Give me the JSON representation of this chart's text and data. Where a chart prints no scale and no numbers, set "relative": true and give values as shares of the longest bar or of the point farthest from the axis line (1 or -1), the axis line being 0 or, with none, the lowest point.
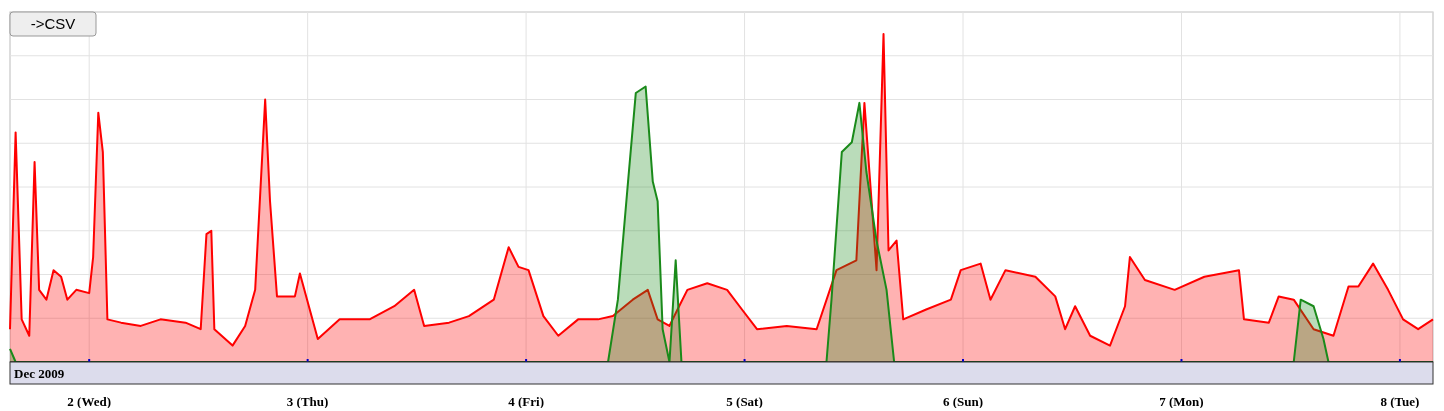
{
  "chart_data": {
    "type": "area",
    "relative": true,
    "xlabel": "Dec 2009",
    "annotations": [
      "->CSV"
    ],
    "grid": true,
    "xlim": [
      "2009-12-01T15:18",
      "2009-12-08T03:38"
    ],
    "xticks": [
      {
        "value": "2009-12-02",
        "label": "2 (Wed)"
      },
      {
        "value": "2009-12-03",
        "label": "3 (Thu)"
      },
      {
        "value": "2009-12-04",
        "label": "4 (Fri)"
      },
      {
        "value": "2009-12-05",
        "label": "5 (Sat)"
      },
      {
        "value": "2009-12-06",
        "label": "6 (Sun)"
      },
      {
        "value": "2009-12-07",
        "label": "7 (Mon)"
      },
      {
        "value": "2009-12-08",
        "label": "8 (Tue)"
      }
    ],
    "series": [
      {
        "color": "#ff0000",
        "x": [
          "2009-12-01T15:18",
          "2009-12-01T15:55",
          "2009-12-01T16:35",
          "2009-12-01T17:25",
          "2009-12-01T18:00",
          "2009-12-01T18:30",
          "2009-12-01T19:18",
          "2009-12-01T20:05",
          "2009-12-01T20:55",
          "2009-12-01T21:36",
          "2009-12-01T22:35",
          "2009-12-02T00:00",
          "2009-12-02T00:26",
          "2009-12-02T01:00",
          "2009-12-02T01:30",
          "2009-12-02T02:00",
          "2009-12-02T03:30",
          "2009-12-02T05:40",
          "2009-12-02T07:50",
          "2009-12-02T10:35",
          "2009-12-02T12:15",
          "2009-12-02T12:53",
          "2009-12-02T13:25",
          "2009-12-02T13:45",
          "2009-12-02T15:45",
          "2009-12-02T17:08",
          "2009-12-02T18:14",
          "2009-12-02T19:20",
          "2009-12-02T19:52",
          "2009-12-02T20:38",
          "2009-12-02T22:36",
          "2009-12-02T23:09",
          "2009-12-03T01:07",
          "2009-12-03T03:31",
          "2009-12-03T06:48",
          "2009-12-03T09:31",
          "2009-12-03T11:42",
          "2009-12-03T12:48",
          "2009-12-03T15:32",
          "2009-12-03T17:43",
          "2009-12-03T20:27",
          "2009-12-03T22:05",
          "2009-12-03T23:10",
          "2009-12-04T00:16",
          "2009-12-04T01:54",
          "2009-12-04T03:32",
          "2009-12-04T05:43",
          "2009-12-04T07:54",
          "2009-12-04T09:32",
          "2009-12-04T11:43",
          "2009-12-04T13:22",
          "2009-12-04T14:27",
          "2009-12-04T15:45",
          "2009-12-04T16:38",
          "2009-12-04T17:43",
          "2009-12-04T19:54",
          "2009-12-04T22:05",
          "2009-12-04T23:43",
          "2009-12-05T01:22",
          "2009-12-05T04:38",
          "2009-12-05T07:55",
          "2009-12-05T10:06",
          "2009-12-05T12:17",
          "2009-12-05T13:10",
          "2009-12-05T13:43",
          "2009-12-05T14:30",
          "2009-12-05T15:16",
          "2009-12-05T15:49",
          "2009-12-05T16:42",
          "2009-12-05T17:26",
          "2009-12-05T19:57",
          "2009-12-05T22:40",
          "2009-12-05T23:45",
          "2009-12-06T01:56",
          "2009-12-06T03:01",
          "2009-12-06T04:40",
          "2009-12-06T07:57",
          "2009-12-06T10:08",
          "2009-12-06T11:13",
          "2009-12-06T12:19",
          "2009-12-06T13:58",
          "2009-12-06T16:09",
          "2009-12-06T17:48",
          "2009-12-06T18:20",
          "2009-12-06T19:59",
          "2009-12-06T23:15",
          "2009-12-07T02:31",
          "2009-12-07T06:19",
          "2009-12-07T06:52",
          "2009-12-07T09:36",
          "2009-12-07T10:41",
          "2009-12-07T12:20",
          "2009-12-07T14:31",
          "2009-12-07T16:42",
          "2009-12-07T18:21",
          "2009-12-07T19:26",
          "2009-12-07T21:03",
          "2009-12-07T22:42",
          "2009-12-08T00:21",
          "2009-12-08T02:00",
          "2009-12-08T03:38"
        ],
        "values": [
          0.1,
          0.7,
          0.13,
          0.08,
          0.61,
          0.22,
          0.19,
          0.28,
          0.26,
          0.19,
          0.22,
          0.21,
          0.32,
          0.76,
          0.64,
          0.13,
          0.12,
          0.11,
          0.13,
          0.12,
          0.1,
          0.39,
          0.4,
          0.1,
          0.05,
          0.11,
          0.22,
          0.8,
          0.49,
          0.2,
          0.2,
          0.27,
          0.07,
          0.13,
          0.13,
          0.17,
          0.22,
          0.11,
          0.12,
          0.14,
          0.19,
          0.35,
          0.29,
          0.28,
          0.14,
          0.08,
          0.13,
          0.13,
          0.14,
          0.19,
          0.22,
          0.13,
          0.11,
          0.16,
          0.22,
          0.24,
          0.22,
          0.16,
          0.1,
          0.11,
          0.1,
          0.28,
          0.31,
          0.79,
          0.58,
          0.28,
          1.0,
          0.34,
          0.37,
          0.13,
          0.16,
          0.19,
          0.28,
          0.3,
          0.19,
          0.28,
          0.26,
          0.2,
          0.1,
          0.17,
          0.08,
          0.05,
          0.17,
          0.32,
          0.25,
          0.22,
          0.26,
          0.28,
          0.13,
          0.12,
          0.2,
          0.19,
          0.1,
          0.08,
          0.23,
          0.23,
          0.3,
          0.22,
          0.13,
          0.1,
          0.13
        ]
      },
      {
        "color": "#1a8a1a",
        "x": [
          "2009-12-01T15:18",
          "2009-12-01T15:55",
          "2009-12-04T09:00",
          "2009-12-04T10:05",
          "2009-12-04T11:12",
          "2009-12-04T12:03",
          "2009-12-04T13:08",
          "2009-12-04T13:55",
          "2009-12-04T14:27",
          "2009-12-04T15:00",
          "2009-12-04T15:45",
          "2009-12-04T16:26",
          "2009-12-04T17:04",
          "2009-12-05T09:00",
          "2009-12-05T09:33",
          "2009-12-05T10:41",
          "2009-12-05T11:47",
          "2009-12-05T12:37",
          "2009-12-05T13:23",
          "2009-12-05T14:30",
          "2009-12-05T15:36",
          "2009-12-05T16:26",
          "2009-12-07T12:20",
          "2009-12-07T13:06",
          "2009-12-07T14:31",
          "2009-12-07T15:36",
          "2009-12-07T16:09",
          "2009-12-08T03:38"
        ],
        "values": [
          0.04,
          0,
          0,
          0.19,
          0.55,
          0.82,
          0.84,
          0.55,
          0.49,
          0.1,
          0,
          0.31,
          0,
          0,
          0.19,
          0.64,
          0.67,
          0.79,
          0.58,
          0.37,
          0.22,
          0,
          0,
          0.19,
          0.17,
          0.07,
          0,
          0
        ]
      }
    ]
  }
}
